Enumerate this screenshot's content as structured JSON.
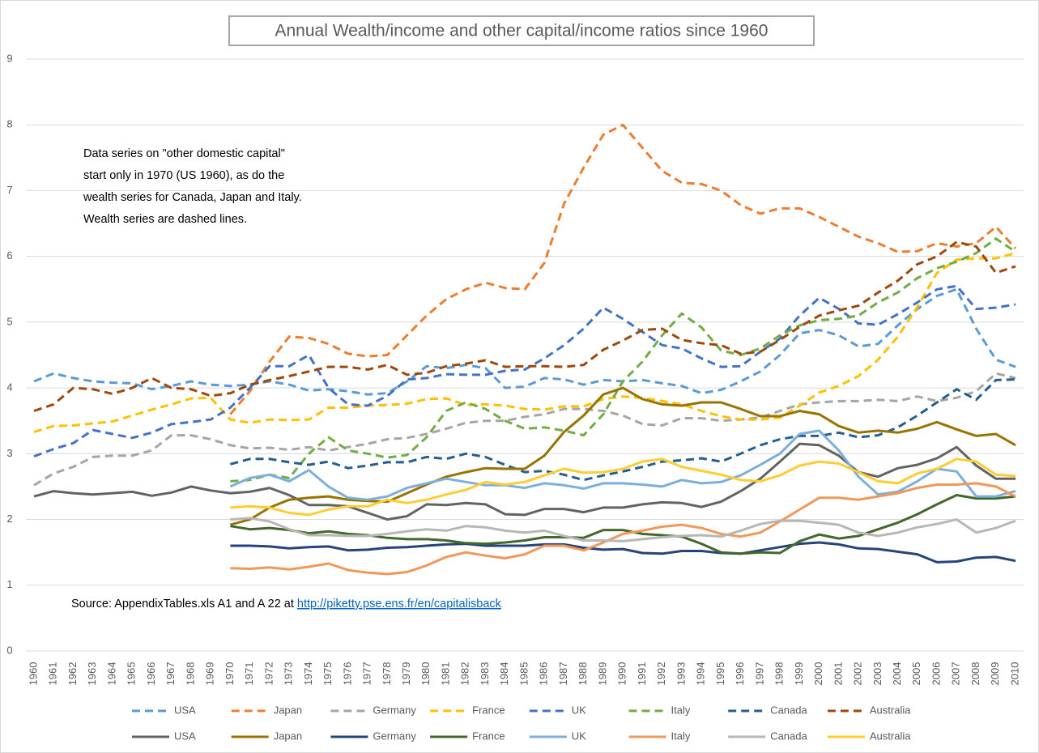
{
  "chart_data": {
    "type": "line",
    "title": "Annual Wealth/income and other capital/income ratios since 1960",
    "annotation_lines": [
      "Data series on \"other domestic capital\"",
      "start only in 1970 (US 1960), as do the",
      "wealth series for Canada, Japan and Italy.",
      "Wealth series are dashed lines."
    ],
    "source_text": "Source: AppendixTables.xls A1 and A 22 at ",
    "source_link": "http://piketty.pse.ens.fr/en/capitalisback",
    "categories": [
      "1960",
      "1961",
      "1962",
      "1963",
      "1964",
      "1965",
      "1966",
      "1967",
      "1968",
      "1969",
      "1970",
      "1971",
      "1972",
      "1973",
      "1974",
      "1975",
      "1976",
      "1977",
      "1978",
      "1979",
      "1980",
      "1981",
      "1982",
      "1983",
      "1984",
      "1985",
      "1986",
      "1987",
      "1988",
      "1989",
      "1990",
      "1991",
      "1992",
      "1993",
      "1994",
      "1995",
      "1996",
      "1997",
      "1998",
      "1999",
      "2000",
      "2001",
      "2002",
      "2003",
      "2004",
      "2005",
      "2006",
      "2007",
      "2008",
      "2009",
      "2010"
    ],
    "ylim": [
      0,
      9
    ],
    "yticks": [
      0,
      1,
      2,
      3,
      4,
      5,
      6,
      7,
      8,
      9
    ],
    "grid": true,
    "series": [
      {
        "name": "USA",
        "color": "#5b9bd5",
        "dashed": true,
        "values": [
          4.1,
          4.22,
          4.15,
          4.1,
          4.08,
          4.07,
          3.98,
          4.03,
          4.1,
          4.05,
          4.03,
          4.05,
          4.1,
          4.05,
          3.96,
          3.98,
          3.95,
          3.9,
          3.92,
          4.1,
          4.33,
          4.3,
          4.35,
          4.3,
          4.0,
          4.02,
          4.15,
          4.13,
          4.05,
          4.12,
          4.1,
          4.12,
          4.07,
          4.03,
          3.92,
          3.97,
          4.1,
          4.25,
          4.5,
          4.83,
          4.88,
          4.8,
          4.63,
          4.67,
          4.95,
          5.2,
          5.4,
          5.5,
          4.9,
          4.43,
          4.32
        ]
      },
      {
        "name": "Japan",
        "color": "#ed7d31",
        "dashed": true,
        "values": [
          null,
          null,
          null,
          null,
          null,
          null,
          null,
          null,
          null,
          null,
          3.6,
          3.95,
          4.4,
          4.78,
          4.76,
          4.67,
          4.52,
          4.48,
          4.5,
          4.8,
          5.1,
          5.35,
          5.5,
          5.6,
          5.52,
          5.5,
          5.9,
          6.8,
          7.35,
          7.85,
          8.0,
          7.65,
          7.3,
          7.12,
          7.1,
          7.0,
          6.78,
          6.65,
          6.73,
          6.73,
          6.6,
          6.45,
          6.3,
          6.2,
          6.07,
          6.08,
          6.2,
          6.15,
          6.2,
          6.45,
          6.12
        ]
      },
      {
        "name": "Germany",
        "color": "#a5a5a5",
        "dashed": true,
        "values": [
          2.52,
          2.7,
          2.8,
          2.95,
          2.97,
          2.97,
          3.05,
          3.28,
          3.28,
          3.22,
          3.13,
          3.08,
          3.09,
          3.06,
          3.1,
          3.05,
          3.1,
          3.15,
          3.22,
          3.24,
          3.3,
          3.38,
          3.47,
          3.5,
          3.5,
          3.56,
          3.6,
          3.68,
          3.68,
          3.65,
          3.58,
          3.45,
          3.43,
          3.54,
          3.54,
          3.5,
          3.52,
          3.55,
          3.65,
          3.75,
          3.78,
          3.8,
          3.8,
          3.82,
          3.8,
          3.87,
          3.8,
          3.85,
          3.95,
          4.22,
          4.15
        ]
      },
      {
        "name": "France",
        "color": "#ffc000",
        "dashed": true,
        "values": [
          3.33,
          3.42,
          3.43,
          3.46,
          3.49,
          3.58,
          3.67,
          3.75,
          3.84,
          3.85,
          3.52,
          3.47,
          3.52,
          3.51,
          3.52,
          3.7,
          3.7,
          3.73,
          3.74,
          3.76,
          3.83,
          3.84,
          3.74,
          3.75,
          3.73,
          3.68,
          3.67,
          3.72,
          3.72,
          3.83,
          3.87,
          3.85,
          3.8,
          3.75,
          3.65,
          3.57,
          3.52,
          3.52,
          3.55,
          3.73,
          3.93,
          4.03,
          4.18,
          4.43,
          4.78,
          5.23,
          5.75,
          5.95,
          5.97,
          5.97,
          6.05
        ]
      },
      {
        "name": "UK",
        "color": "#4472c4",
        "dashed": true,
        "values": [
          2.96,
          3.07,
          3.16,
          3.36,
          3.3,
          3.24,
          3.32,
          3.45,
          3.48,
          3.52,
          3.7,
          4.0,
          4.33,
          4.33,
          4.5,
          4.0,
          3.75,
          3.73,
          3.88,
          4.13,
          4.15,
          4.21,
          4.2,
          4.2,
          4.26,
          4.28,
          4.45,
          4.65,
          4.9,
          5.22,
          5.05,
          4.85,
          4.65,
          4.6,
          4.45,
          4.32,
          4.33,
          4.55,
          4.75,
          5.1,
          5.37,
          5.2,
          4.98,
          4.96,
          5.12,
          5.3,
          5.5,
          5.55,
          5.2,
          5.22,
          5.27
        ]
      },
      {
        "name": "Italy",
        "color": "#70ad47",
        "dashed": true,
        "values": [
          null,
          null,
          null,
          null,
          null,
          null,
          null,
          null,
          null,
          null,
          2.58,
          2.6,
          2.68,
          2.63,
          3.0,
          3.25,
          3.05,
          3.0,
          2.94,
          2.98,
          3.25,
          3.65,
          3.78,
          3.68,
          3.5,
          3.38,
          3.4,
          3.35,
          3.28,
          3.6,
          4.1,
          4.4,
          4.8,
          5.13,
          4.92,
          4.57,
          4.5,
          4.6,
          4.8,
          4.95,
          5.03,
          5.05,
          5.1,
          5.3,
          5.45,
          5.67,
          5.82,
          5.92,
          6.05,
          6.27,
          6.07
        ]
      },
      {
        "name": "Canada",
        "color": "#255e91",
        "dashed": true,
        "values": [
          null,
          null,
          null,
          null,
          null,
          null,
          null,
          null,
          null,
          null,
          2.84,
          2.92,
          2.92,
          2.87,
          2.83,
          2.88,
          2.78,
          2.82,
          2.87,
          2.87,
          2.95,
          2.92,
          3.0,
          2.95,
          2.83,
          2.72,
          2.74,
          2.68,
          2.6,
          2.67,
          2.73,
          2.8,
          2.88,
          2.9,
          2.93,
          2.88,
          3.0,
          3.13,
          3.22,
          3.27,
          3.27,
          3.32,
          3.25,
          3.28,
          3.4,
          3.58,
          3.78,
          3.98,
          3.82,
          4.12,
          4.13
        ]
      },
      {
        "name": "Australia",
        "color": "#9e480e",
        "dashed": true,
        "values": [
          3.65,
          3.75,
          4.0,
          3.98,
          3.91,
          4.0,
          4.15,
          4.0,
          3.98,
          3.88,
          3.92,
          4.05,
          4.12,
          4.18,
          4.25,
          4.32,
          4.32,
          4.28,
          4.35,
          4.2,
          4.23,
          4.33,
          4.37,
          4.42,
          4.32,
          4.33,
          4.33,
          4.32,
          4.35,
          4.58,
          4.72,
          4.88,
          4.9,
          4.73,
          4.68,
          4.65,
          4.52,
          4.55,
          4.73,
          4.93,
          5.1,
          5.18,
          5.25,
          5.45,
          5.63,
          5.88,
          6.0,
          6.22,
          6.15,
          5.75,
          5.85
        ]
      },
      {
        "name": "USA",
        "color": "#636363",
        "dashed": false,
        "values": [
          2.35,
          2.43,
          2.4,
          2.38,
          2.4,
          2.42,
          2.36,
          2.41,
          2.5,
          2.44,
          2.4,
          2.42,
          2.48,
          2.37,
          2.22,
          2.22,
          2.2,
          2.1,
          2.0,
          2.05,
          2.23,
          2.22,
          2.25,
          2.23,
          2.08,
          2.07,
          2.16,
          2.16,
          2.11,
          2.18,
          2.18,
          2.23,
          2.26,
          2.25,
          2.19,
          2.27,
          2.43,
          2.62,
          2.88,
          3.15,
          3.13,
          2.97,
          2.72,
          2.65,
          2.78,
          2.83,
          2.93,
          3.1,
          2.82,
          2.62,
          2.62
        ]
      },
      {
        "name": "Japan",
        "color": "#997300",
        "dashed": false,
        "values": [
          null,
          null,
          null,
          null,
          null,
          null,
          null,
          null,
          null,
          null,
          1.92,
          2.0,
          2.18,
          2.3,
          2.33,
          2.35,
          2.3,
          2.28,
          2.27,
          2.4,
          2.53,
          2.65,
          2.72,
          2.78,
          2.77,
          2.77,
          2.97,
          3.33,
          3.58,
          3.9,
          4.0,
          3.83,
          3.75,
          3.73,
          3.78,
          3.78,
          3.68,
          3.57,
          3.57,
          3.65,
          3.6,
          3.42,
          3.32,
          3.35,
          3.32,
          3.38,
          3.48,
          3.37,
          3.27,
          3.3,
          3.13
        ]
      },
      {
        "name": "Germany",
        "color": "#264478",
        "dashed": false,
        "values": [
          null,
          null,
          null,
          null,
          null,
          null,
          null,
          null,
          null,
          null,
          1.6,
          1.6,
          1.59,
          1.56,
          1.58,
          1.59,
          1.53,
          1.54,
          1.57,
          1.58,
          1.6,
          1.62,
          1.63,
          1.6,
          1.6,
          1.6,
          1.62,
          1.62,
          1.57,
          1.54,
          1.55,
          1.49,
          1.48,
          1.52,
          1.52,
          1.49,
          1.48,
          1.53,
          1.58,
          1.63,
          1.65,
          1.62,
          1.56,
          1.55,
          1.51,
          1.47,
          1.35,
          1.36,
          1.42,
          1.43,
          1.37
        ]
      },
      {
        "name": "France",
        "color": "#43682b",
        "dashed": false,
        "values": [
          null,
          null,
          null,
          null,
          null,
          null,
          null,
          null,
          null,
          null,
          1.9,
          1.85,
          1.87,
          1.84,
          1.79,
          1.82,
          1.78,
          1.76,
          1.72,
          1.7,
          1.7,
          1.68,
          1.64,
          1.63,
          1.65,
          1.68,
          1.73,
          1.73,
          1.72,
          1.84,
          1.84,
          1.78,
          1.76,
          1.74,
          1.63,
          1.5,
          1.48,
          1.5,
          1.49,
          1.67,
          1.77,
          1.71,
          1.75,
          1.85,
          1.95,
          2.08,
          2.23,
          2.37,
          2.32,
          2.32,
          2.35
        ]
      },
      {
        "name": "UK",
        "color": "#7cafdd",
        "dashed": false,
        "values": [
          null,
          null,
          null,
          null,
          null,
          null,
          null,
          null,
          null,
          null,
          2.5,
          2.63,
          2.68,
          2.58,
          2.75,
          2.5,
          2.33,
          2.3,
          2.35,
          2.48,
          2.55,
          2.62,
          2.57,
          2.52,
          2.52,
          2.48,
          2.55,
          2.52,
          2.47,
          2.55,
          2.55,
          2.53,
          2.5,
          2.6,
          2.55,
          2.57,
          2.67,
          2.83,
          3.0,
          3.3,
          3.35,
          3.05,
          2.65,
          2.38,
          2.42,
          2.58,
          2.77,
          2.73,
          2.35,
          2.35,
          2.43
        ]
      },
      {
        "name": "Italy",
        "color": "#f1975a",
        "dashed": false,
        "values": [
          null,
          null,
          null,
          null,
          null,
          null,
          null,
          null,
          null,
          null,
          1.26,
          1.25,
          1.27,
          1.24,
          1.28,
          1.33,
          1.23,
          1.19,
          1.17,
          1.2,
          1.3,
          1.43,
          1.5,
          1.45,
          1.41,
          1.47,
          1.6,
          1.6,
          1.53,
          1.65,
          1.78,
          1.83,
          1.89,
          1.92,
          1.87,
          1.78,
          1.74,
          1.8,
          1.97,
          2.15,
          2.33,
          2.33,
          2.3,
          2.35,
          2.4,
          2.48,
          2.53,
          2.53,
          2.55,
          2.5,
          2.35
        ]
      },
      {
        "name": "Canada",
        "color": "#b7b7b7",
        "dashed": false,
        "values": [
          null,
          null,
          null,
          null,
          null,
          null,
          null,
          null,
          null,
          null,
          2.0,
          2.02,
          1.97,
          1.85,
          1.76,
          1.76,
          1.75,
          1.75,
          1.78,
          1.82,
          1.85,
          1.83,
          1.9,
          1.88,
          1.83,
          1.8,
          1.83,
          1.75,
          1.68,
          1.68,
          1.67,
          1.7,
          1.73,
          1.75,
          1.76,
          1.74,
          1.83,
          1.93,
          1.98,
          1.98,
          1.95,
          1.92,
          1.8,
          1.75,
          1.8,
          1.88,
          1.93,
          2.0,
          1.8,
          1.87,
          1.98
        ]
      },
      {
        "name": "Australia",
        "color": "#ffcd33",
        "dashed": false,
        "values": [
          null,
          null,
          null,
          null,
          null,
          null,
          null,
          null,
          null,
          null,
          2.18,
          2.2,
          2.18,
          2.1,
          2.07,
          2.15,
          2.2,
          2.2,
          2.3,
          2.25,
          2.3,
          2.38,
          2.45,
          2.57,
          2.53,
          2.57,
          2.67,
          2.77,
          2.71,
          2.72,
          2.77,
          2.88,
          2.92,
          2.8,
          2.74,
          2.68,
          2.6,
          2.58,
          2.67,
          2.82,
          2.88,
          2.85,
          2.72,
          2.58,
          2.55,
          2.7,
          2.77,
          2.92,
          2.88,
          2.68,
          2.66
        ]
      }
    ]
  }
}
